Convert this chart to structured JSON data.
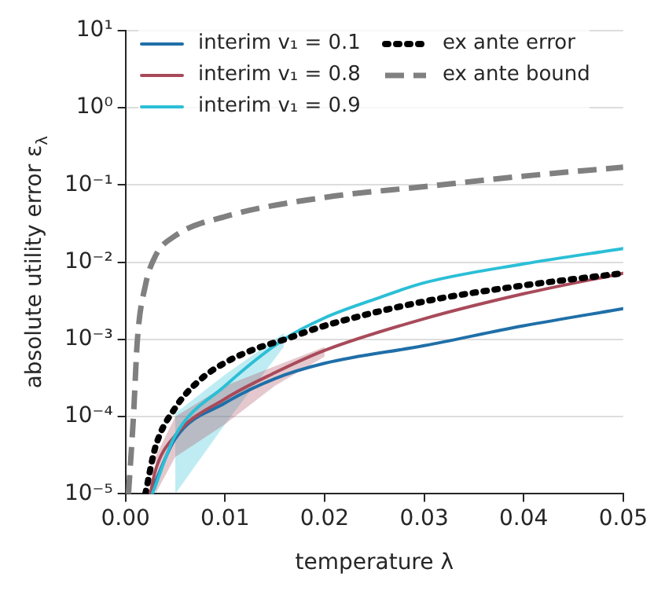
{
  "chart_data": {
    "type": "line",
    "xlabel": "temperature λ",
    "ylabel": "absolute utility error ε$_{λ}$",
    "xlim": [
      0,
      0.05
    ],
    "xticks": [
      {
        "value": 0,
        "label": "0.00"
      },
      0.01,
      0.02,
      0.03,
      0.04,
      {
        "value": 0.05,
        "label": "0.05"
      }
    ],
    "ylim": [
      1e-05,
      10
    ],
    "yticks": [
      {
        "value": 1e-05,
        "label": "10⁻⁵"
      },
      {
        "value": 0.0001,
        "label": "10⁻⁴"
      },
      {
        "value": 0.001,
        "label": "10⁻³"
      },
      {
        "value": 0.01,
        "label": "10⁻²"
      },
      {
        "value": 0.1,
        "label": "10⁻¹"
      },
      {
        "value": 1,
        "label": "10⁰"
      },
      {
        "value": 10,
        "label": "10¹"
      }
    ],
    "log": "y",
    "grid": "y",
    "legend": "top left",
    "marker": "none",
    "series": [
      {
        "name": "interim v₁ = 0.1",
        "color": "#1f6fa8",
        "line_style": "solid",
        "x": [
          0.0025,
          0.005,
          0.01,
          0.015,
          0.02,
          0.03,
          0.04,
          0.05
        ],
        "values": [
          1e-05,
          5.2e-05,
          0.00015,
          0.00031,
          0.00049,
          0.00083,
          0.0015,
          0.0025
        ]
      },
      {
        "name": "interim v₁ = 0.8",
        "color": "#a84a5a",
        "line_style": "solid",
        "x": [
          0.0025,
          0.003,
          0.005,
          0.01,
          0.015,
          0.02,
          0.03,
          0.04,
          0.05
        ],
        "values": [
          1e-05,
          2e-05,
          5.7e-05,
          0.00017,
          0.00037,
          0.00072,
          0.00185,
          0.0039,
          0.0072
        ],
        "lower": [
          null,
          1e-05,
          3e-05,
          8e-05,
          0.00025,
          0.0006,
          null,
          null,
          null
        ],
        "upper": [
          null,
          3e-05,
          0.0001,
          0.00025,
          0.00045,
          0.0008,
          null,
          null,
          null
        ]
      },
      {
        "name": "interim v₁ = 0.9",
        "color": "#2bbfd6",
        "line_style": "solid",
        "x": [
          0.0027,
          0.005,
          0.01,
          0.0159,
          0.02,
          0.025,
          0.03,
          0.04,
          0.05
        ],
        "values": [
          1e-05,
          5.7e-05,
          0.00025,
          0.001,
          0.0019,
          0.0033,
          0.0054,
          0.0095,
          0.015
        ],
        "lower": [
          null,
          1e-05,
          8e-05,
          0.0008,
          null,
          null,
          null,
          null,
          null
        ],
        "upper": [
          null,
          0.00011,
          0.00035,
          0.0012,
          null,
          null,
          null,
          null,
          null
        ]
      },
      {
        "name": "ex ante error",
        "color": "#000000",
        "line_style": "dotted",
        "x": [
          0.002,
          0.003,
          0.005,
          0.0075,
          0.01,
          0.013,
          0.016,
          0.02,
          0.03,
          0.04,
          0.05
        ],
        "values": [
          1e-05,
          4e-05,
          0.00013,
          0.0003,
          0.0005,
          0.00075,
          0.001,
          0.0015,
          0.0031,
          0.005,
          0.0072
        ]
      },
      {
        "name": "ex ante bound",
        "color": "#808080",
        "line_style": "dashed",
        "x": [
          0.0003,
          0.0008,
          0.0012,
          0.002,
          0.003,
          0.005,
          0.01,
          0.02,
          0.03,
          0.04,
          0.05
        ],
        "values": [
          1e-05,
          0.0001,
          0.001,
          0.005,
          0.012,
          0.022,
          0.039,
          0.069,
          0.095,
          0.13,
          0.17
        ]
      }
    ]
  }
}
